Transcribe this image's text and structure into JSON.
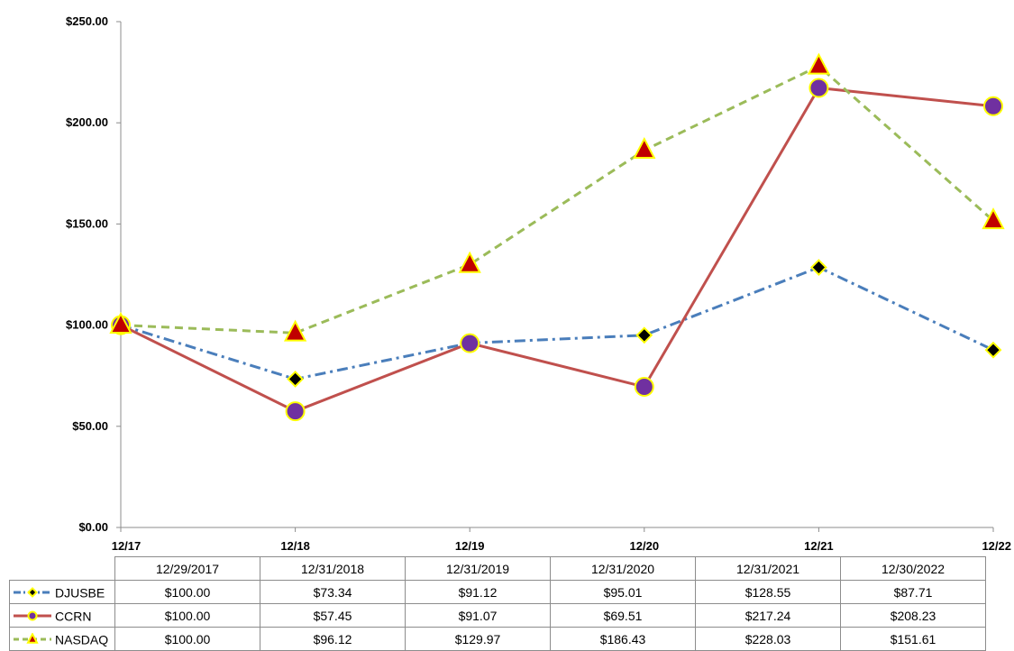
{
  "chart_data": {
    "type": "line",
    "categories": [
      "12/17",
      "12/18",
      "12/19",
      "12/20",
      "12/21",
      "12/22"
    ],
    "dates": [
      "12/29/2017",
      "12/31/2018",
      "12/31/2019",
      "12/31/2020",
      "12/31/2021",
      "12/30/2022"
    ],
    "ylim": [
      0,
      250
    ],
    "yticks": [
      0,
      50,
      100,
      150,
      200,
      250
    ],
    "ytick_labels": [
      "$0.00",
      "$50.00",
      "$100.00",
      "$150.00",
      "$200.00",
      "$250.00"
    ],
    "grid": false,
    "legend_placement": "data-table-below",
    "series": [
      {
        "name": "DJUSBE",
        "values": [
          100.0,
          73.34,
          91.12,
          95.01,
          128.55,
          87.71
        ],
        "labels": [
          "$100.00",
          "$73.34",
          "$91.12",
          "$95.01",
          "$128.55",
          "$87.71"
        ],
        "color": "#4a7ebb",
        "line_style": "dash-dot",
        "marker": "diamond",
        "marker_fill": "#000000",
        "marker_edge": "#ffff00"
      },
      {
        "name": "CCRN",
        "values": [
          100.0,
          57.45,
          91.07,
          69.51,
          217.24,
          208.23
        ],
        "labels": [
          "$100.00",
          "$57.45",
          "$91.07",
          "$69.51",
          "$217.24",
          "$208.23"
        ],
        "color": "#c0504d",
        "line_style": "solid",
        "marker": "circle",
        "marker_fill": "#7030a0",
        "marker_edge": "#ffff00"
      },
      {
        "name": "NASDAQ",
        "values": [
          100.0,
          96.12,
          129.97,
          186.43,
          228.03,
          151.61
        ],
        "labels": [
          "$100.00",
          "$96.12",
          "$129.97",
          "$186.43",
          "$228.03",
          "$151.61"
        ],
        "color": "#9bbb59",
        "line_style": "dashed",
        "marker": "triangle",
        "marker_fill": "#c00000",
        "marker_edge": "#ffff00"
      }
    ]
  }
}
